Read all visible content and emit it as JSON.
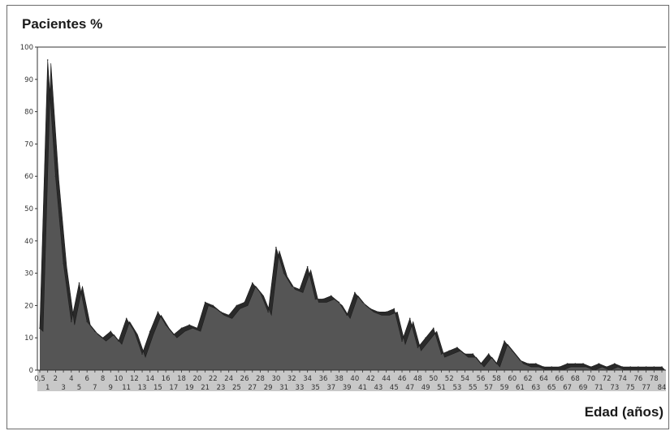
{
  "chart_data": {
    "type": "area",
    "title": "Pacientes %",
    "xlabel": "Edad (años)",
    "ylabel": "",
    "ylim": [
      0,
      100
    ],
    "yticks": [
      0,
      10,
      20,
      30,
      40,
      50,
      60,
      70,
      80,
      90,
      100
    ],
    "grid": false,
    "style": {
      "area_fill": "#555555",
      "band_fill": "#2a2a2a",
      "axis_color": "#333333",
      "band_color": "#c8c8c8"
    },
    "categories": [
      "0,5",
      "1",
      "2",
      "3",
      "4",
      "5",
      "6",
      "7",
      "8",
      "9",
      "10",
      "11",
      "12",
      "13",
      "14",
      "15",
      "16",
      "17",
      "18",
      "19",
      "20",
      "21",
      "22",
      "23",
      "24",
      "25",
      "26",
      "27",
      "28",
      "29",
      "30",
      "31",
      "32",
      "33",
      "34",
      "35",
      "36",
      "37",
      "38",
      "39",
      "40",
      "41",
      "42",
      "43",
      "44",
      "45",
      "46",
      "47",
      "48",
      "49",
      "50",
      "51",
      "52",
      "53",
      "54",
      "55",
      "56",
      "57",
      "58",
      "59",
      "60",
      "61",
      "62",
      "63",
      "64",
      "65",
      "66",
      "67",
      "68",
      "69",
      "70",
      "71",
      "72",
      "73",
      "74",
      "75",
      "76",
      "77",
      "78",
      "84"
    ],
    "values": [
      13,
      96,
      60,
      33,
      15,
      27,
      15,
      12,
      10,
      12,
      9,
      16,
      12,
      5,
      12,
      18,
      14,
      11,
      13,
      14,
      13,
      21,
      20,
      18,
      17,
      20,
      21,
      27,
      24,
      18,
      38,
      30,
      26,
      25,
      32,
      22,
      22,
      23,
      21,
      17,
      24,
      21,
      19,
      18,
      18,
      19,
      9,
      16,
      7,
      10,
      13,
      5,
      6,
      7,
      5,
      5,
      2,
      5,
      2,
      9,
      6,
      3,
      2,
      2,
      1,
      1,
      1,
      2,
      2,
      2,
      1,
      2,
      1,
      2,
      1,
      1,
      1,
      1,
      1,
      1
    ]
  }
}
